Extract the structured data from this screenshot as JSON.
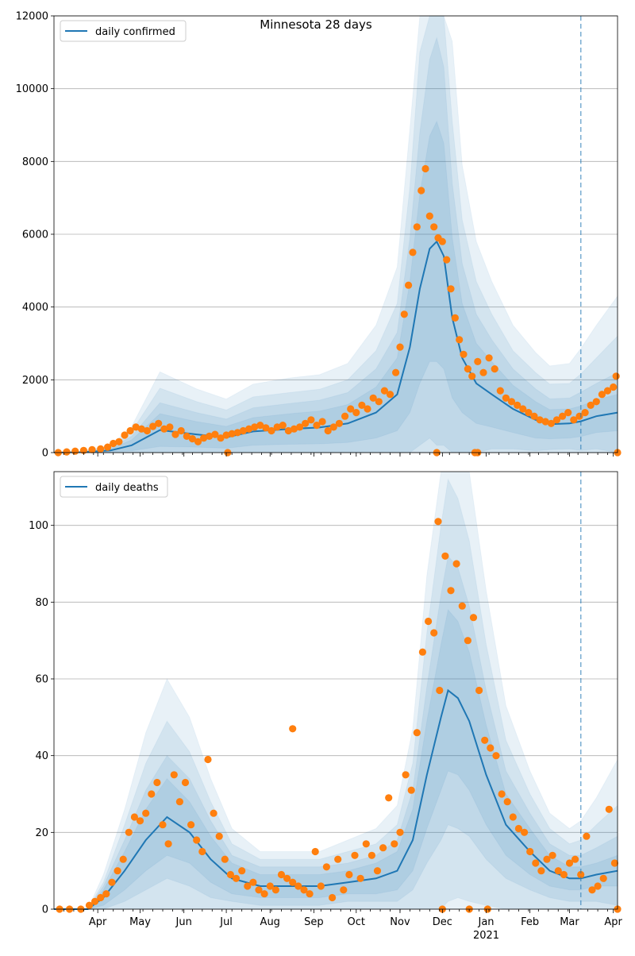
{
  "colors": {
    "line": "#1f77b4",
    "band": "#1f77b4",
    "points": "#ff7f0e",
    "grid": "#b0b0b0",
    "vline": "#1f77b4"
  },
  "chart_data": [
    {
      "type": "line",
      "title": "Minnesota 28 days",
      "legend": {
        "label": "daily confirmed",
        "placement": "top-left"
      },
      "ylim": [
        0,
        12000
      ],
      "yticks": [
        0,
        2000,
        4000,
        6000,
        8000,
        10000,
        12000
      ],
      "xlim": [
        "2020-03-01",
        "2021-04-04"
      ],
      "grid": "y",
      "forecast_start": "2021-03-09",
      "series": [
        {
          "name": "daily confirmed",
          "x": [
            "2020-03-01",
            "2020-03-20",
            "2020-04-10",
            "2020-04-25",
            "2020-05-15",
            "2020-06-10",
            "2020-07-01",
            "2020-07-20",
            "2020-08-15",
            "2020-09-05",
            "2020-09-25",
            "2020-10-15",
            "2020-10-30",
            "2020-11-08",
            "2020-11-15",
            "2020-11-22",
            "2020-11-27",
            "2020-12-02",
            "2020-12-08",
            "2020-12-15",
            "2020-12-25",
            "2021-01-05",
            "2021-01-20",
            "2021-02-05",
            "2021-02-15",
            "2021-03-01",
            "2021-03-09",
            "2021-03-20",
            "2021-04-04"
          ],
          "values": [
            0,
            10,
            60,
            200,
            620,
            500,
            420,
            580,
            650,
            690,
            800,
            1100,
            1600,
            2900,
            4500,
            5600,
            5800,
            5400,
            3700,
            2600,
            1900,
            1600,
            1200,
            900,
            780,
            800,
            860,
            1000,
            1100
          ],
          "band_widths": [
            [
              0,
              10,
              40,
              150,
              450,
              350,
              300,
              380,
              420,
              450,
              520,
              700,
              1000,
              1800,
              2600,
              3100,
              3300,
              3100,
              2200,
              1500,
              1100,
              900,
              650,
              500,
              400,
              400,
              420,
              450,
              500
            ],
            [
              0,
              15,
              60,
              250,
              750,
              600,
              500,
              650,
              700,
              750,
              850,
              1200,
              1700,
              3000,
              4300,
              5200,
              5600,
              5200,
              3700,
              2600,
              1900,
              1500,
              1100,
              850,
              700,
              700,
              800,
              900,
              1100
            ],
            [
              0,
              20,
              90,
              380,
              1150,
              900,
              750,
              950,
              1000,
              1050,
              1200,
              1700,
              2500,
              4400,
              6500,
              7800,
              8200,
              7600,
              5400,
              3800,
              2800,
              2200,
              1600,
              1300,
              1100,
              1100,
              1300,
              1600,
              2100
            ],
            [
              0,
              30,
              130,
              520,
              1600,
              1250,
              1050,
              1300,
              1400,
              1450,
              1650,
              2400,
              3500,
              6000,
              9000,
              11000,
              11600,
              10800,
              7600,
              5300,
              3900,
              3100,
              2300,
              1850,
              1600,
              1650,
              2000,
              2500,
              3200
            ]
          ]
        }
      ],
      "points": {
        "x": [
          "2020-03-04",
          "2020-03-10",
          "2020-03-16",
          "2020-03-22",
          "2020-03-28",
          "2020-04-03",
          "2020-04-08",
          "2020-04-12",
          "2020-04-16",
          "2020-04-20",
          "2020-04-24",
          "2020-04-28",
          "2020-05-02",
          "2020-05-06",
          "2020-05-10",
          "2020-05-14",
          "2020-05-18",
          "2020-05-22",
          "2020-05-26",
          "2020-05-30",
          "2020-06-03",
          "2020-06-07",
          "2020-06-11",
          "2020-06-15",
          "2020-06-19",
          "2020-06-23",
          "2020-06-27",
          "2020-07-01",
          "2020-07-05",
          "2020-07-09",
          "2020-07-13",
          "2020-07-17",
          "2020-07-21",
          "2020-07-25",
          "2020-07-29",
          "2020-08-02",
          "2020-08-06",
          "2020-08-10",
          "2020-08-14",
          "2020-08-18",
          "2020-08-22",
          "2020-08-26",
          "2020-08-30",
          "2020-09-03",
          "2020-09-07",
          "2020-09-11",
          "2020-09-15",
          "2020-09-19",
          "2020-09-23",
          "2020-09-27",
          "2020-10-01",
          "2020-10-05",
          "2020-10-09",
          "2020-10-13",
          "2020-10-17",
          "2020-10-21",
          "2020-10-25",
          "2020-10-29",
          "2020-11-01",
          "2020-11-04",
          "2020-11-07",
          "2020-11-10",
          "2020-11-13",
          "2020-11-16",
          "2020-11-19",
          "2020-11-22",
          "2020-11-25",
          "2020-11-28",
          "2020-12-01",
          "2020-12-04",
          "2020-12-07",
          "2020-12-10",
          "2020-12-13",
          "2020-12-16",
          "2020-12-19",
          "2020-12-22",
          "2020-12-26",
          "2020-12-30",
          "2021-01-03",
          "2021-01-07",
          "2021-01-11",
          "2021-01-15",
          "2021-01-19",
          "2021-01-23",
          "2021-01-27",
          "2021-01-31",
          "2021-02-04",
          "2021-02-08",
          "2021-02-12",
          "2021-02-16",
          "2021-02-20",
          "2021-02-24",
          "2021-02-28",
          "2021-03-04",
          "2021-03-08",
          "2021-03-12",
          "2021-03-16",
          "2021-03-20",
          "2021-03-24",
          "2021-03-28",
          "2021-04-01",
          "2021-04-03",
          "2020-07-02",
          "2020-11-27",
          "2020-12-24",
          "2020-12-26",
          "2021-04-04"
        ],
        "values": [
          0,
          20,
          40,
          60,
          80,
          100,
          150,
          250,
          300,
          480,
          600,
          700,
          650,
          600,
          720,
          800,
          650,
          700,
          500,
          600,
          450,
          380,
          300,
          400,
          450,
          500,
          400,
          480,
          520,
          550,
          600,
          650,
          700,
          750,
          680,
          600,
          700,
          750,
          600,
          650,
          700,
          800,
          900,
          750,
          850,
          600,
          700,
          800,
          1000,
          1200,
          1100,
          1300,
          1200,
          1500,
          1400,
          1700,
          1600,
          2200,
          2900,
          3800,
          4600,
          5500,
          6200,
          7200,
          7800,
          6500,
          6200,
          5900,
          5800,
          5300,
          4500,
          3700,
          3100,
          2700,
          2300,
          2100,
          2500,
          2200,
          2600,
          2300,
          1700,
          1500,
          1400,
          1300,
          1200,
          1100,
          1000,
          900,
          850,
          800,
          900,
          1000,
          1100,
          900,
          1000,
          1100,
          1300,
          1400,
          1600,
          1700,
          1800,
          2100,
          0,
          0,
          0,
          0,
          0
        ]
      }
    },
    {
      "type": "line",
      "title": "",
      "legend": {
        "label": "daily deaths",
        "placement": "top-left"
      },
      "ylim": [
        0,
        114
      ],
      "yticks": [
        0,
        20,
        40,
        60,
        80,
        100
      ],
      "xlim": [
        "2020-03-01",
        "2021-04-04"
      ],
      "xticks": [
        {
          "date": "2020-04-01",
          "label": "Apr"
        },
        {
          "date": "2020-05-01",
          "label": "May"
        },
        {
          "date": "2020-06-01",
          "label": "Jun"
        },
        {
          "date": "2020-07-01",
          "label": "Jul"
        },
        {
          "date": "2020-08-01",
          "label": "Aug"
        },
        {
          "date": "2020-09-01",
          "label": "Sep"
        },
        {
          "date": "2020-10-01",
          "label": "Oct"
        },
        {
          "date": "2020-11-01",
          "label": "Nov"
        },
        {
          "date": "2020-12-01",
          "label": "Dec"
        },
        {
          "date": "2021-01-01",
          "label": "Jan"
        },
        {
          "date": "2021-02-01",
          "label": "Feb"
        },
        {
          "date": "2021-03-01",
          "label": "Mar"
        },
        {
          "date": "2021-04-01",
          "label": "Apr"
        }
      ],
      "year_label": {
        "date": "2021-01-01",
        "label": "2021"
      },
      "grid": "y",
      "forecast_start": "2021-03-09",
      "series": [
        {
          "name": "daily deaths",
          "x": [
            "2020-03-01",
            "2020-03-25",
            "2020-04-05",
            "2020-04-20",
            "2020-05-05",
            "2020-05-20",
            "2020-06-05",
            "2020-06-20",
            "2020-07-05",
            "2020-07-25",
            "2020-08-15",
            "2020-09-05",
            "2020-09-25",
            "2020-10-15",
            "2020-10-30",
            "2020-11-10",
            "2020-11-20",
            "2020-11-30",
            "2020-12-05",
            "2020-12-12",
            "2020-12-20",
            "2021-01-01",
            "2021-01-15",
            "2021-02-01",
            "2021-02-15",
            "2021-03-01",
            "2021-03-09",
            "2021-03-20",
            "2021-04-04"
          ],
          "values": [
            0,
            0,
            3,
            10,
            18,
            24,
            20,
            13,
            8,
            6,
            6,
            6,
            7,
            8,
            10,
            18,
            35,
            50,
            57,
            55,
            49,
            35,
            22,
            15,
            10,
            8,
            8,
            9,
            10
          ],
          "band_widths": [
            [
              0,
              0,
              2,
              5,
              8,
              10,
              8,
              6,
              4,
              3,
              3,
              3,
              3,
              4,
              5,
              8,
              14,
              19,
              21,
              20,
              18,
              13,
              8,
              6,
              4,
              3,
              3,
              3,
              4
            ],
            [
              0,
              0,
              3,
              8,
              13,
              16,
              14,
              10,
              6,
              5,
              5,
              5,
              5,
              6,
              8,
              13,
              23,
              32,
              35,
              34,
              30,
              22,
              14,
              10,
              7,
              6,
              6,
              7,
              9
            ],
            [
              0,
              0,
              4,
              12,
              20,
              25,
              21,
              15,
              9,
              7,
              7,
              7,
              8,
              9,
              12,
              20,
              37,
              50,
              55,
              52,
              47,
              34,
              22,
              15,
              11,
              9,
              10,
              13,
              17
            ],
            [
              0,
              0,
              6,
              16,
              28,
              36,
              30,
              21,
              13,
              9,
              9,
              9,
              11,
              13,
              17,
              29,
              52,
              70,
              77,
              74,
              66,
              48,
              31,
              21,
              15,
              13,
              15,
              20,
              29
            ]
          ]
        }
      ],
      "points": {
        "x": [
          "2020-03-05",
          "2020-03-12",
          "2020-03-20",
          "2020-03-26",
          "2020-03-30",
          "2020-04-03",
          "2020-04-07",
          "2020-04-11",
          "2020-04-15",
          "2020-04-19",
          "2020-04-23",
          "2020-04-27",
          "2020-05-01",
          "2020-05-05",
          "2020-05-09",
          "2020-05-13",
          "2020-05-17",
          "2020-05-21",
          "2020-05-25",
          "2020-05-29",
          "2020-06-02",
          "2020-06-06",
          "2020-06-10",
          "2020-06-14",
          "2020-06-18",
          "2020-06-22",
          "2020-06-26",
          "2020-06-30",
          "2020-07-04",
          "2020-07-08",
          "2020-07-12",
          "2020-07-16",
          "2020-07-20",
          "2020-07-24",
          "2020-07-28",
          "2020-08-01",
          "2020-08-05",
          "2020-08-09",
          "2020-08-13",
          "2020-08-17",
          "2020-08-21",
          "2020-08-25",
          "2020-08-29",
          "2020-09-02",
          "2020-09-06",
          "2020-09-10",
          "2020-09-14",
          "2020-09-18",
          "2020-09-22",
          "2020-09-26",
          "2020-09-30",
          "2020-10-04",
          "2020-10-08",
          "2020-10-12",
          "2020-10-16",
          "2020-10-20",
          "2020-10-24",
          "2020-10-28",
          "2020-11-01",
          "2020-11-05",
          "2020-11-09",
          "2020-11-13",
          "2020-11-17",
          "2020-11-21",
          "2020-11-25",
          "2020-11-29",
          "2020-12-03",
          "2020-12-07",
          "2020-12-11",
          "2020-12-15",
          "2020-12-19",
          "2020-12-23",
          "2020-12-27",
          "2020-12-31",
          "2021-01-04",
          "2021-01-08",
          "2021-01-12",
          "2021-01-16",
          "2021-01-20",
          "2021-01-24",
          "2021-01-28",
          "2021-02-01",
          "2021-02-05",
          "2021-02-09",
          "2021-02-13",
          "2021-02-17",
          "2021-02-21",
          "2021-02-25",
          "2021-03-01",
          "2021-03-05",
          "2021-03-09",
          "2021-03-13",
          "2021-03-17",
          "2021-03-21",
          "2021-03-25",
          "2021-03-29",
          "2021-04-02",
          "2020-08-17",
          "2020-11-28",
          "2020-12-01",
          "2020-12-20",
          "2021-01-02",
          "2021-04-04"
        ],
        "values": [
          0,
          0,
          0,
          1,
          2,
          3,
          4,
          7,
          10,
          13,
          20,
          24,
          23,
          25,
          30,
          33,
          22,
          17,
          35,
          28,
          33,
          22,
          18,
          15,
          39,
          25,
          19,
          13,
          9,
          8,
          10,
          6,
          7,
          5,
          4,
          6,
          5,
          9,
          8,
          7,
          6,
          5,
          4,
          15,
          6,
          11,
          3,
          13,
          5,
          9,
          14,
          8,
          17,
          14,
          10,
          16,
          29,
          17,
          20,
          35,
          31,
          46,
          67,
          75,
          72,
          57,
          92,
          83,
          90,
          79,
          70,
          76,
          57,
          44,
          42,
          40,
          30,
          28,
          24,
          21,
          20,
          15,
          12,
          10,
          13,
          14,
          10,
          9,
          12,
          13,
          9,
          19,
          5,
          6,
          8,
          26,
          12,
          47,
          101,
          0,
          0,
          0,
          0
        ]
      }
    }
  ]
}
